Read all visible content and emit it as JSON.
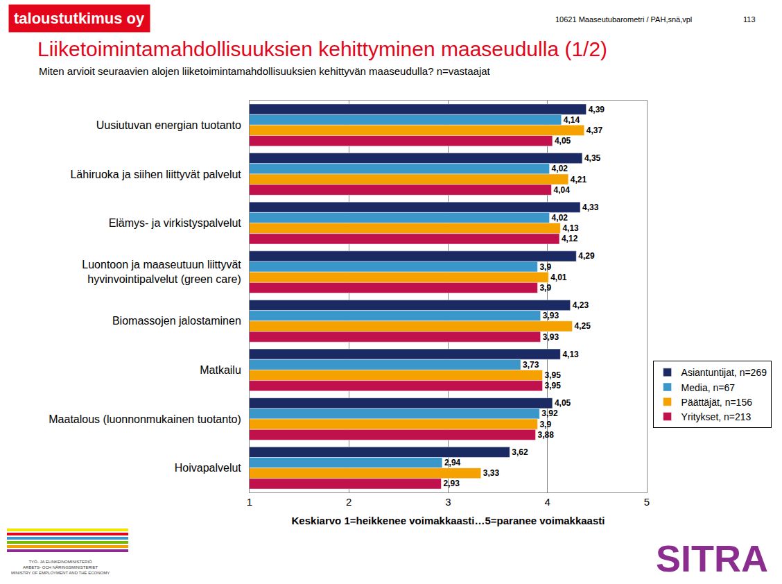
{
  "chart_data": {
    "type": "bar",
    "orientation": "horizontal",
    "title": "Liiketoimintamahdollisuuksien kehittyminen maaseudulla (1/2)",
    "subtitle": "Miten arvioit seuraavien alojen liiketoimintamahdollisuuksien kehittyvän maaseudulla? n=vastaajat",
    "xlabel": "Keskiarvo 1=heikkenee voimakkaasti…5=paranee voimakkaasti",
    "annotations": [
      "taloustutkimus oy",
      "10621 Maaseutubarometri / PAH,snä,vpl",
      "113",
      "TYÖ- JA ELINKEINOMINISTERIÖ\nARBETS- OCH NÄRINGSMINISTERIET\nMINISTRY OF EMPLOYMENT AND THE ECONOMY",
      "SITRA"
    ],
    "categories": [
      "Uusiutuvan energian tuotanto",
      "Lähiruoka ja siihen liittyvät palvelut",
      "Elämys- ja virkistyspalvelut",
      "Luontoon ja maaseutuun liittyvät\nhyvinvointipalvelut (green care)",
      "Biomassojen jalostaminen",
      "Matkailu",
      "Maatalous (luonnonmukainen tuotanto)",
      "Hoivapalvelut"
    ],
    "series": [
      {
        "name": "Asiantuntijat, n=269",
        "color": "#1b2a63",
        "values": [
          4.39,
          4.35,
          4.33,
          4.29,
          4.23,
          4.13,
          4.05,
          3.62
        ],
        "value_labels": [
          "4,39",
          "4,35",
          "4,33",
          "4,29",
          "4,23",
          "4,13",
          "4,05",
          "3,62"
        ]
      },
      {
        "name": "Media, n=67",
        "color": "#3b97c9",
        "values": [
          4.14,
          4.02,
          4.02,
          3.9,
          3.93,
          3.73,
          3.92,
          2.94
        ],
        "value_labels": [
          "4,14",
          "4,02",
          "4,02",
          "3,9",
          "3,93",
          "3,73",
          "3,92",
          "2,94"
        ]
      },
      {
        "name": "Päättäjät, n=156",
        "color": "#f5a100",
        "values": [
          4.37,
          4.21,
          4.13,
          4.01,
          4.25,
          3.95,
          3.9,
          3.33
        ],
        "value_labels": [
          "4,37",
          "4,21",
          "4,13",
          "4,01",
          "4,25",
          "3,95",
          "3,9",
          "3,33"
        ]
      },
      {
        "name": "Yritykset, n=213",
        "color": "#c0114d",
        "values": [
          4.05,
          4.04,
          4.12,
          3.9,
          3.93,
          3.95,
          3.88,
          2.93
        ],
        "value_labels": [
          "4,05",
          "4,04",
          "4,12",
          "3,9",
          "3,93",
          "3,95",
          "3,88",
          "2,93"
        ]
      }
    ],
    "xlim": [
      1,
      5
    ],
    "xticks": [
      1,
      2,
      3,
      4,
      5
    ],
    "grid": true,
    "legend": "right",
    "data_labels": true
  }
}
